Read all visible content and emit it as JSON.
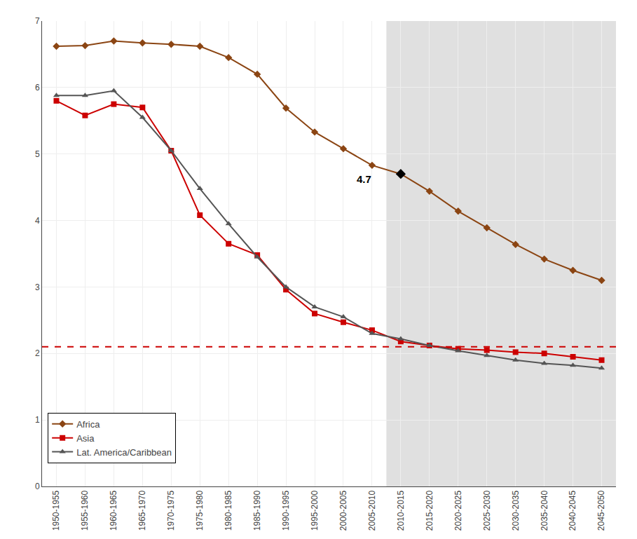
{
  "chart_data": {
    "type": "line",
    "categories": [
      "1950-1955",
      "1955-1960",
      "1960-1965",
      "1965-1970",
      "1970-1975",
      "1975-1980",
      "1980-1985",
      "1985-1990",
      "1990-1995",
      "1995-2000",
      "2000-2005",
      "2005-2010",
      "2010-2015",
      "2015-2020",
      "2020-2025",
      "2025-2030",
      "2030-2035",
      "2035-2040",
      "2040-2045",
      "2045-2050"
    ],
    "series": [
      {
        "name": "Africa",
        "color": "#8B4513",
        "marker": "diamond",
        "values": [
          6.62,
          6.63,
          6.7,
          6.67,
          6.65,
          6.62,
          6.45,
          6.2,
          5.69,
          5.33,
          5.08,
          4.83,
          4.7,
          4.44,
          4.14,
          3.89,
          3.64,
          3.42,
          3.25,
          3.1
        ]
      },
      {
        "name": "Asia",
        "color": "#CC0000",
        "marker": "square",
        "values": [
          5.8,
          5.58,
          5.75,
          5.7,
          5.05,
          4.08,
          3.65,
          3.48,
          2.96,
          2.6,
          2.47,
          2.35,
          2.18,
          2.12,
          2.07,
          2.05,
          2.02,
          2.0,
          1.95,
          1.9
        ]
      },
      {
        "name": "Lat. America/Caribbean",
        "color": "#555555",
        "marker": "triangle-up",
        "values": [
          5.88,
          5.88,
          5.95,
          5.55,
          5.05,
          4.48,
          3.95,
          3.45,
          3.0,
          2.7,
          2.55,
          2.3,
          2.22,
          2.12,
          2.04,
          1.97,
          1.9,
          1.85,
          1.82,
          1.78
        ]
      }
    ],
    "annotations": [
      {
        "text": "4.7",
        "x": "2010-2015",
        "y": 4.7,
        "marker": "diamond",
        "color": "#000000"
      }
    ],
    "reference_lines": [
      {
        "y": 2.1,
        "color": "#CC0000",
        "line_style": "dashed"
      }
    ],
    "shaded_region": {
      "from": "2010-2015",
      "color": "#E0E0E0"
    },
    "ylim": [
      0.0,
      7.0
    ],
    "yticks": [
      0,
      1,
      2,
      3,
      4,
      5,
      6,
      7
    ],
    "grid": true,
    "legend": "lower left"
  }
}
